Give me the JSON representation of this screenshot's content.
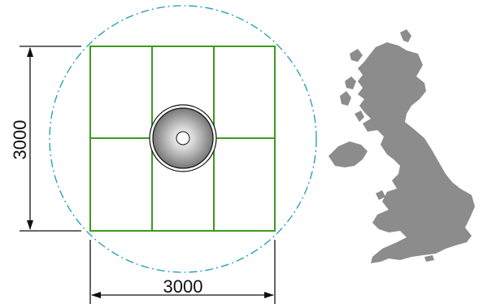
{
  "drawing": {
    "dimension_horizontal": "3000",
    "dimension_vertical": "3000",
    "colors": {
      "grid": "#3f9a1f",
      "circle": "#1a9bb5",
      "dimension": "#111111",
      "map": "#8c8c8c",
      "pole_fill_center": "#ffffff",
      "pole_fill_edge": "#7a7a7a"
    },
    "icons": {
      "map": "great-britain-map-icon",
      "pole": "pole-base-icon"
    }
  }
}
